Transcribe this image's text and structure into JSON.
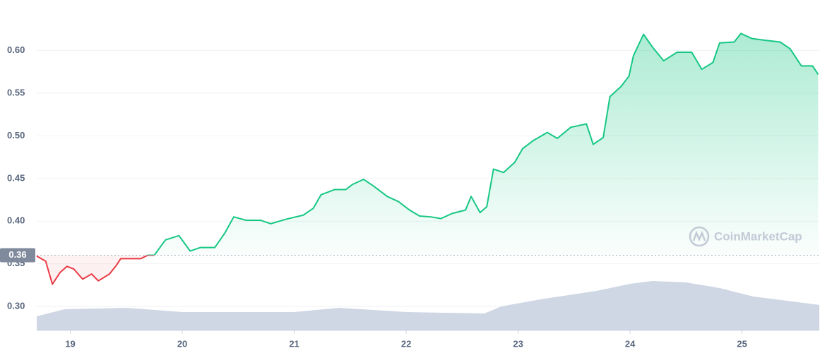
{
  "chart_data": {
    "type": "line",
    "watermark": "CoinMarketCap",
    "xlim": [
      18.7,
      25.69
    ],
    "xticks": [
      19,
      20,
      21,
      22,
      23,
      24,
      25
    ],
    "ylim": [
      0.2719,
      0.6427
    ],
    "yticks": [
      {
        "value": 0.3,
        "label": "0.30"
      },
      0.35,
      {
        "value": 0.4,
        "label": "0.40"
      },
      0.45,
      {
        "value": 0.5,
        "label": "0.50"
      },
      0.55,
      {
        "value": 0.6,
        "label": "0.60"
      }
    ],
    "grid": true,
    "baseline": 0.36,
    "up_color": "#16c784",
    "down_color": "#ea3943",
    "x": [
      18.7,
      18.78,
      18.84,
      18.91,
      18.97,
      19.03,
      19.11,
      19.19,
      19.25,
      19.35,
      19.41,
      19.45,
      19.54,
      19.63,
      19.69,
      19.75,
      19.85,
      19.97,
      20.07,
      20.16,
      20.29,
      20.38,
      20.46,
      20.57,
      20.7,
      20.79,
      20.92,
      21.08,
      21.17,
      21.24,
      21.36,
      21.46,
      21.52,
      21.62,
      21.71,
      21.83,
      21.93,
      22.03,
      22.12,
      22.22,
      22.31,
      22.41,
      22.53,
      22.58,
      22.66,
      22.72,
      22.78,
      22.87,
      22.97,
      23.04,
      23.13,
      23.26,
      23.35,
      23.47,
      23.61,
      23.67,
      23.76,
      23.82,
      23.92,
      23.99,
      24.03,
      24.12,
      24.2,
      24.3,
      24.42,
      24.55,
      24.64,
      24.74,
      24.8,
      24.93,
      24.99,
      25.09,
      25.21,
      25.34,
      25.43,
      25.53,
      25.63,
      25.68
    ],
    "values": [
      0.359,
      0.353,
      0.326,
      0.34,
      0.347,
      0.344,
      0.332,
      0.338,
      0.33,
      0.338,
      0.348,
      0.356,
      0.356,
      0.356,
      0.36,
      0.36,
      0.378,
      0.383,
      0.365,
      0.369,
      0.369,
      0.386,
      0.405,
      0.401,
      0.401,
      0.397,
      0.402,
      0.407,
      0.415,
      0.431,
      0.437,
      0.437,
      0.443,
      0.449,
      0.441,
      0.429,
      0.423,
      0.413,
      0.406,
      0.405,
      0.403,
      0.409,
      0.413,
      0.429,
      0.41,
      0.417,
      0.461,
      0.457,
      0.469,
      0.485,
      0.494,
      0.504,
      0.497,
      0.51,
      0.514,
      0.49,
      0.498,
      0.546,
      0.558,
      0.57,
      0.594,
      0.619,
      0.604,
      0.588,
      0.598,
      0.598,
      0.578,
      0.586,
      0.609,
      0.61,
      0.62,
      0.614,
      0.612,
      0.61,
      0.602,
      0.582,
      0.582,
      0.572
    ],
    "volume": {
      "color": "#cfd6e4",
      "y2lim": [
        0,
        100
      ],
      "x": [
        18.7,
        18.95,
        19.5,
        20.0,
        21.0,
        21.4,
        22.0,
        22.7,
        22.85,
        23.2,
        23.7,
        24.0,
        24.2,
        24.5,
        24.8,
        25.1,
        25.4,
        25.69
      ],
      "values": [
        10,
        15,
        16,
        13,
        13,
        16,
        13,
        12,
        17,
        22,
        28,
        33,
        35,
        34,
        30,
        24,
        21,
        18
      ]
    }
  }
}
